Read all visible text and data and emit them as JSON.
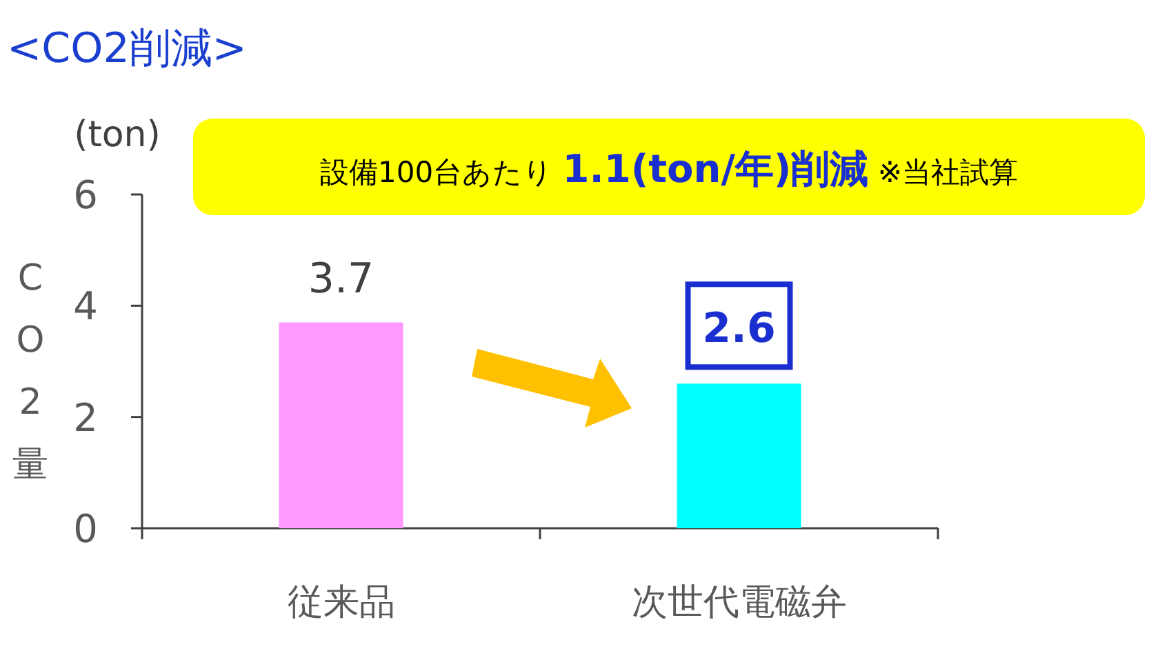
{
  "chart_data": {
    "type": "bar",
    "title": "<CO2削減>",
    "ylabel": "CO2量",
    "categories": [
      "従来品",
      "次世代電磁弁"
    ],
    "values": [
      3.7,
      2.6
    ],
    "colors": [
      "#ff99ff",
      "#00ffff"
    ],
    "ylim": [
      0,
      6
    ],
    "yticks": [
      0,
      2,
      4,
      6
    ],
    "data_labels": true,
    "annotations": [
      "(ton)",
      "設備100台あたり **1.1(ton/年)削減** ※当社試算"
    ]
  }
}
